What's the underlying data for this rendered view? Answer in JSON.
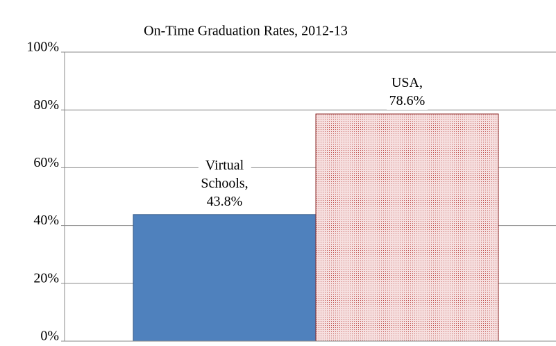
{
  "chart_data": {
    "type": "bar",
    "title": "On-Time Graduation Rates, 2012-13",
    "categories": [
      null,
      null
    ],
    "values": [
      43.8,
      78.6
    ],
    "value_labels": [
      "Virtual Schools, 43.8%",
      "USA, 78.6%"
    ],
    "colors": [
      "#4f81bd",
      "#c0504d"
    ],
    "ylim": [
      0,
      100
    ],
    "yticks": [
      {
        "value": 0,
        "label": "0%"
      },
      {
        "value": 20,
        "label": "20%"
      },
      {
        "value": 40,
        "label": "40%"
      },
      {
        "value": 60,
        "label": "60%"
      },
      {
        "value": 80,
        "label": "80%"
      },
      {
        "value": 100,
        "label": "100%"
      }
    ],
    "grid": true
  }
}
